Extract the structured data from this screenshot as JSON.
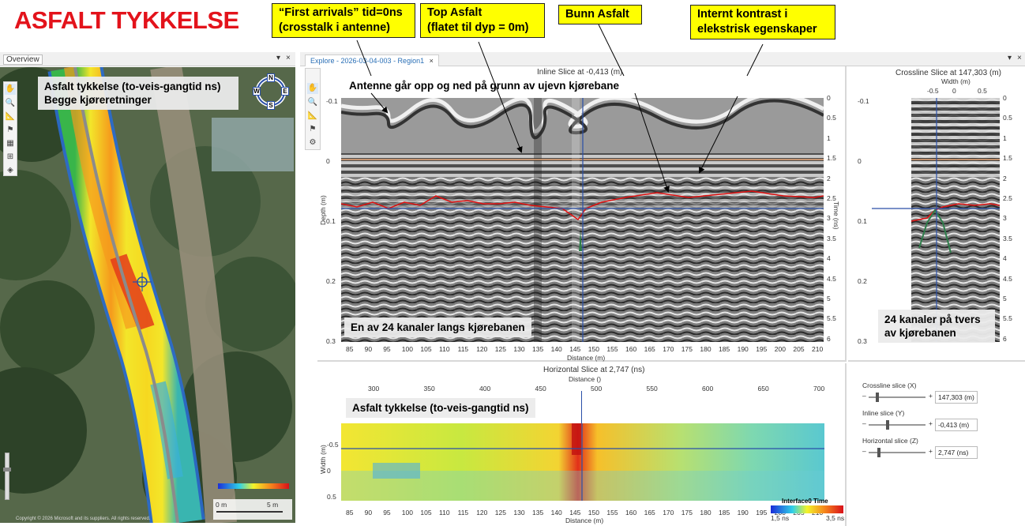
{
  "title": "ASFALT TYKKELSE",
  "callouts": {
    "first_arrivals": [
      "“First arrivals” tid=0ns",
      "(crosstalk i antenne)"
    ],
    "top_asfalt": [
      "Top Asfalt",
      "(flatet til dyp = 0m)"
    ],
    "bunn_asfalt": "Bunn Asfalt",
    "internt": [
      "Internt kontrast i",
      "elekstrisk egenskaper"
    ]
  },
  "overview": {
    "panel_title": "Overview",
    "label": [
      "Asfalt tykkelse (to-veis-gangtid ns)",
      "Begge kjøreretninger"
    ],
    "compass": {
      "n": "N",
      "s": "S",
      "e": "E",
      "w": "W"
    },
    "scale_labels": [
      "0 m",
      "5 m"
    ],
    "copyright": "Copyright © 2026 Microsoft and its suppliers. All rights reserved."
  },
  "explore": {
    "tab_label": "Explore - 2026-03-04-003 - Region1",
    "tab_close": "×"
  },
  "inline": {
    "title": "Inline Slice at -0,413 (m)",
    "annotation": "Antenne går opp og ned på grunn av ujevn kjørebane",
    "label": "En av 24 kanaler langs kjørebanen",
    "xlabel": "Distance (m)",
    "ylabel": "Depth (m)",
    "y2label": "Time (ns)",
    "x_ticks": [
      "85",
      "90",
      "95",
      "100",
      "105",
      "110",
      "115",
      "120",
      "125",
      "130",
      "135",
      "140",
      "145",
      "150",
      "155",
      "160",
      "165",
      "170",
      "175",
      "180",
      "185",
      "190",
      "195",
      "200",
      "205",
      "210"
    ],
    "depth_ticks": [
      "-0.1",
      "0",
      "0.1",
      "0.2",
      "0.3"
    ],
    "time_ticks": [
      "0",
      "0.5",
      "1",
      "1.5",
      "2",
      "2.5",
      "3",
      "3.5",
      "4",
      "4.5",
      "5",
      "5.5",
      "6"
    ]
  },
  "crossline": {
    "title": "Crossline Slice at 147,303 (m)",
    "xlabel": "Width (m)",
    "x_ticks": [
      "-0.5",
      "0",
      "0.5"
    ],
    "depth_ticks": [
      "-0.1",
      "0",
      "0.1",
      "0.2",
      "0.3"
    ],
    "time_ticks": [
      "0",
      "0.5",
      "1",
      "1.5",
      "2",
      "2.5",
      "3",
      "3.5",
      "4",
      "4.5",
      "5",
      "5.5",
      "6"
    ],
    "label": [
      "24 kanaler på tvers",
      "av kjørebanen"
    ]
  },
  "horizontal": {
    "title": "Horizontal Slice at 2,747 (ns)",
    "top_axis_label": "Distance ()",
    "top_ticks": [
      "300",
      "350",
      "400",
      "450",
      "500",
      "550",
      "600",
      "650",
      "700"
    ],
    "xlabel": "Distance (m)",
    "x_ticks": [
      "85",
      "90",
      "95",
      "100",
      "105",
      "110",
      "115",
      "120",
      "125",
      "130",
      "135",
      "140",
      "145",
      "150",
      "155",
      "160",
      "165",
      "170",
      "175",
      "180",
      "185",
      "190",
      "195",
      "200",
      "205",
      "210"
    ],
    "ylabel": "Width (m)",
    "y_ticks": [
      "-0.5",
      "0",
      "0.5"
    ],
    "label": "Asfalt tykkelse (to-veis-gangtid ns)",
    "legend_title": "Interface0 Time",
    "legend_min": "1,5 ns",
    "legend_max": "3,5 ns"
  },
  "sliders": {
    "crossline": {
      "label": "Crossline slice (X)",
      "value": "147,303 (m)",
      "level": 0.12
    },
    "inline": {
      "label": "Inline slice (Y)",
      "value": "-0,413 (m)",
      "level": 0.3
    },
    "horizontal": {
      "label": "Horizontal slice (Z)",
      "value": "2,747 (ns)",
      "level": 0.15
    },
    "minus": "–",
    "plus": "+"
  },
  "colors": {
    "title_red": "#e3131b",
    "callout_yellow": "#ffff00",
    "bottom_line": "#e01010",
    "guide_blue": "#2a4fa8",
    "top_line": "#e8a878"
  }
}
